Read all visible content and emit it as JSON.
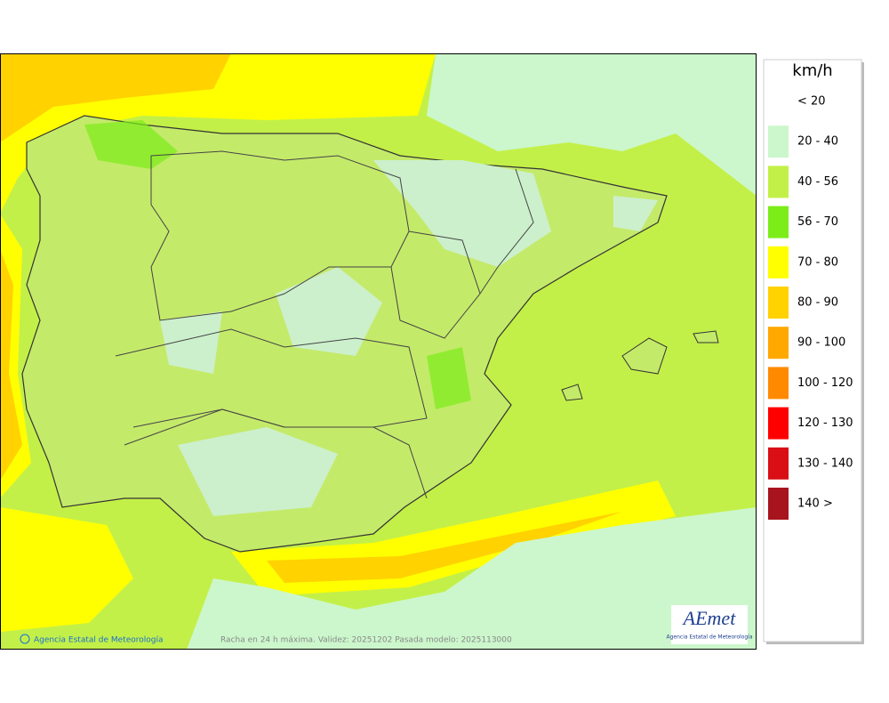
{
  "legend": {
    "title": "km/h",
    "items": [
      {
        "label": "< 20",
        "color": null
      },
      {
        "label": "20 - 40",
        "color": "#ccf7cc"
      },
      {
        "label": "40 - 56",
        "color": "#c3f048"
      },
      {
        "label": "56 - 70",
        "color": "#7ced19"
      },
      {
        "label": "70 - 80",
        "color": "#ffff00"
      },
      {
        "label": "80 - 90",
        "color": "#ffd200"
      },
      {
        "label": "90 - 100",
        "color": "#ffa800"
      },
      {
        "label": "100 - 120",
        "color": "#ff8a00"
      },
      {
        "label": "120 - 130",
        "color": "#ff0000"
      },
      {
        "label": "130 - 140",
        "color": "#d90f15"
      },
      {
        "label": "140 >",
        "color": "#a8141e"
      }
    ]
  },
  "footer": {
    "credit": "Agencia Estatal de Meteorología",
    "caption": "Racha en 24 h máxima. Validez: 20251202 Pasada modelo: 2025113000"
  },
  "logo": {
    "name": "AEmet",
    "subtitle": "Agencia Estatal de Meteorología"
  }
}
